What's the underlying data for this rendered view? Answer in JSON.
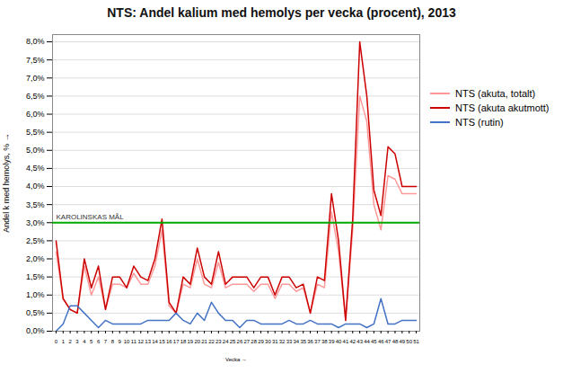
{
  "chart_data": {
    "type": "line",
    "title": "NTS: Andel kalium med hemolys per vecka (procent), 2013",
    "xlabel": "Vecka",
    "ylabel": "Andel k med hemolys, %",
    "x": [
      0,
      1,
      2,
      3,
      4,
      5,
      6,
      7,
      8,
      9,
      10,
      11,
      12,
      13,
      14,
      15,
      16,
      17,
      18,
      19,
      20,
      21,
      22,
      23,
      24,
      25,
      26,
      27,
      28,
      29,
      30,
      31,
      32,
      33,
      34,
      35,
      36,
      37,
      38,
      39,
      40,
      41,
      42,
      43,
      44,
      45,
      46,
      47,
      48,
      49,
      50,
      51
    ],
    "xlim": [
      -0.5,
      51.5
    ],
    "xticks": [
      0,
      1,
      2,
      3,
      4,
      5,
      6,
      7,
      8,
      9,
      10,
      11,
      12,
      13,
      14,
      15,
      16,
      17,
      18,
      19,
      20,
      21,
      22,
      23,
      24,
      25,
      26,
      27,
      28,
      29,
      30,
      31,
      32,
      33,
      34,
      35,
      36,
      37,
      38,
      39,
      40,
      41,
      42,
      43,
      44,
      45,
      46,
      47,
      48,
      49,
      50,
      51
    ],
    "ylim": [
      0,
      0.082
    ],
    "yticks": [
      {
        "value": 0.0,
        "label": "0,0%"
      },
      {
        "value": 0.005,
        "label": "0,5%"
      },
      {
        "value": 0.01,
        "label": "1,0%"
      },
      {
        "value": 0.015,
        "label": "1,5%"
      },
      {
        "value": 0.02,
        "label": "2,0%"
      },
      {
        "value": 0.025,
        "label": "2,5%"
      },
      {
        "value": 0.03,
        "label": "3,0%"
      },
      {
        "value": 0.035,
        "label": "3,5%"
      },
      {
        "value": 0.04,
        "label": "4,0%"
      },
      {
        "value": 0.045,
        "label": "4,5%"
      },
      {
        "value": 0.05,
        "label": "5,0%"
      },
      {
        "value": 0.055,
        "label": "5,5%"
      },
      {
        "value": 0.06,
        "label": "6,0%"
      },
      {
        "value": 0.065,
        "label": "6,5%"
      },
      {
        "value": 0.07,
        "label": "7,0%"
      },
      {
        "value": 0.075,
        "label": "7,5%"
      },
      {
        "value": 0.08,
        "label": "8,0%"
      }
    ],
    "grid": true,
    "legend": "right",
    "series": [
      {
        "name": "NTS (akuta, totalt)",
        "color": "#ff9999",
        "values": [
          0.022,
          0.009,
          0.006,
          0.005,
          0.018,
          0.01,
          0.015,
          0.006,
          0.013,
          0.013,
          0.012,
          0.016,
          0.013,
          0.013,
          0.018,
          0.028,
          0.007,
          0.005,
          0.013,
          0.012,
          0.02,
          0.013,
          0.012,
          0.019,
          0.012,
          0.013,
          0.013,
          0.013,
          0.011,
          0.013,
          0.013,
          0.009,
          0.013,
          0.013,
          0.011,
          0.012,
          0.005,
          0.013,
          0.012,
          0.033,
          0.022,
          0.003,
          0.028,
          0.065,
          0.058,
          0.035,
          0.028,
          0.043,
          0.042,
          0.038,
          0.038,
          0.038
        ]
      },
      {
        "name": "NTS (akuta akutmott)",
        "color": "#cc0000",
        "values": [
          0.025,
          0.009,
          0.006,
          0.005,
          0.02,
          0.012,
          0.018,
          0.006,
          0.015,
          0.015,
          0.012,
          0.018,
          0.015,
          0.014,
          0.02,
          0.031,
          0.008,
          0.005,
          0.015,
          0.013,
          0.023,
          0.015,
          0.013,
          0.022,
          0.013,
          0.015,
          0.015,
          0.015,
          0.012,
          0.015,
          0.015,
          0.01,
          0.015,
          0.015,
          0.012,
          0.013,
          0.005,
          0.015,
          0.014,
          0.038,
          0.025,
          0.003,
          0.031,
          0.08,
          0.065,
          0.039,
          0.032,
          0.051,
          0.049,
          0.04,
          0.04,
          0.04
        ]
      },
      {
        "name": "NTS (rutin)",
        "color": "#4472c4",
        "values": [
          0.0,
          0.002,
          0.007,
          0.007,
          0.005,
          0.003,
          0.001,
          0.003,
          0.002,
          0.002,
          0.002,
          0.002,
          0.002,
          0.003,
          0.003,
          0.003,
          0.003,
          0.005,
          0.003,
          0.002,
          0.005,
          0.003,
          0.008,
          0.005,
          0.003,
          0.003,
          0.001,
          0.003,
          0.003,
          0.002,
          0.002,
          0.002,
          0.002,
          0.003,
          0.002,
          0.002,
          0.003,
          0.002,
          0.002,
          0.002,
          0.001,
          0.002,
          0.002,
          0.002,
          0.001,
          0.002,
          0.009,
          0.002,
          0.002,
          0.003,
          0.003,
          0.003
        ]
      }
    ],
    "hlines": [
      {
        "y": 0.03,
        "label": "KAROLINSKAS MÅL",
        "color": "#00aa00"
      }
    ]
  }
}
